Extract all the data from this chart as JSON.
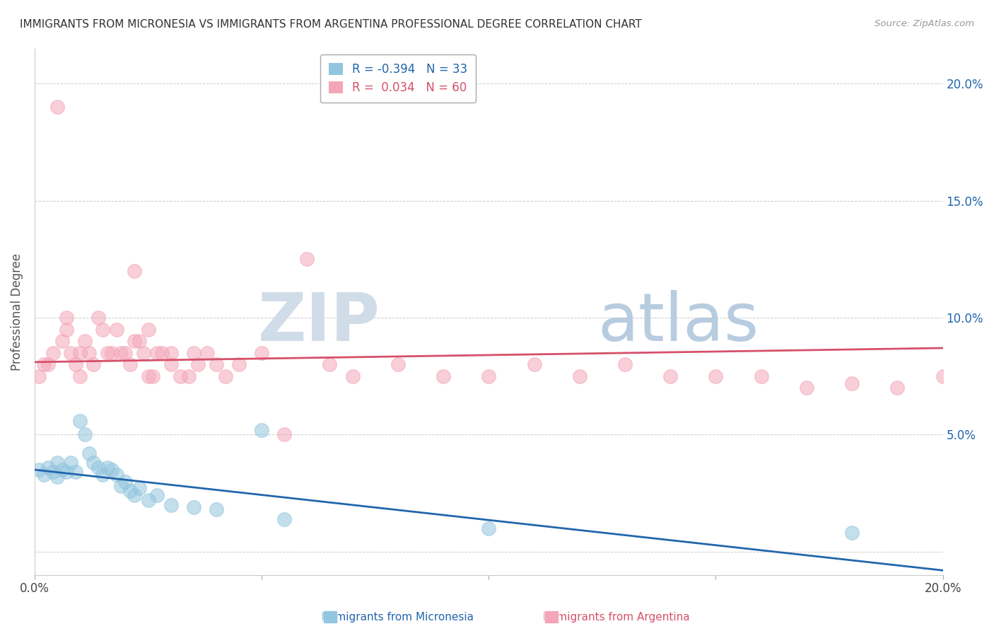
{
  "title": "IMMIGRANTS FROM MICRONESIA VS IMMIGRANTS FROM ARGENTINA PROFESSIONAL DEGREE CORRELATION CHART",
  "source": "Source: ZipAtlas.com",
  "ylabel": "Professional Degree",
  "xlim": [
    0.0,
    0.2
  ],
  "ylim": [
    -0.01,
    0.215
  ],
  "xticks": [
    0.0,
    0.05,
    0.1,
    0.15,
    0.2
  ],
  "yticks": [
    0.0,
    0.05,
    0.1,
    0.15,
    0.2
  ],
  "xticklabels": [
    "0.0%",
    "",
    "",
    "",
    "20.0%"
  ],
  "right_yticklabels": [
    "",
    "5.0%",
    "10.0%",
    "15.0%",
    "20.0%"
  ],
  "legend_r1": "R = -0.394",
  "legend_n1": "N = 33",
  "legend_r2": "R =  0.034",
  "legend_n2": "N = 60",
  "color_blue": "#92c5de",
  "color_pink": "#f4a6b8",
  "line_blue": "#2166ac",
  "line_pink": "#d6506a",
  "watermark_zip": "ZIP",
  "watermark_atlas": "atlas",
  "watermark_color_zip": "#d0dce8",
  "watermark_color_atlas": "#b8cce0",
  "blue_x": [
    0.001,
    0.002,
    0.003,
    0.004,
    0.005,
    0.005,
    0.006,
    0.007,
    0.008,
    0.009,
    0.01,
    0.011,
    0.012,
    0.013,
    0.014,
    0.015,
    0.016,
    0.017,
    0.018,
    0.019,
    0.02,
    0.021,
    0.022,
    0.023,
    0.025,
    0.027,
    0.03,
    0.035,
    0.04,
    0.05,
    0.055,
    0.1,
    0.18
  ],
  "blue_y": [
    0.035,
    0.033,
    0.036,
    0.034,
    0.032,
    0.038,
    0.035,
    0.034,
    0.038,
    0.034,
    0.056,
    0.05,
    0.042,
    0.038,
    0.036,
    0.033,
    0.036,
    0.035,
    0.033,
    0.028,
    0.03,
    0.026,
    0.024,
    0.027,
    0.022,
    0.024,
    0.02,
    0.019,
    0.018,
    0.052,
    0.014,
    0.01,
    0.008
  ],
  "pink_x": [
    0.001,
    0.002,
    0.003,
    0.004,
    0.005,
    0.006,
    0.007,
    0.007,
    0.008,
    0.009,
    0.01,
    0.011,
    0.012,
    0.013,
    0.014,
    0.015,
    0.016,
    0.017,
    0.018,
    0.019,
    0.02,
    0.021,
    0.022,
    0.022,
    0.023,
    0.024,
    0.025,
    0.026,
    0.027,
    0.028,
    0.03,
    0.032,
    0.034,
    0.035,
    0.036,
    0.038,
    0.04,
    0.042,
    0.045,
    0.05,
    0.055,
    0.06,
    0.065,
    0.07,
    0.08,
    0.09,
    0.1,
    0.11,
    0.12,
    0.13,
    0.14,
    0.15,
    0.16,
    0.17,
    0.18,
    0.19,
    0.2,
    0.025,
    0.03,
    0.01
  ],
  "pink_y": [
    0.075,
    0.08,
    0.08,
    0.085,
    0.19,
    0.09,
    0.095,
    0.1,
    0.085,
    0.08,
    0.075,
    0.09,
    0.085,
    0.08,
    0.1,
    0.095,
    0.085,
    0.085,
    0.095,
    0.085,
    0.085,
    0.08,
    0.09,
    0.12,
    0.09,
    0.085,
    0.095,
    0.075,
    0.085,
    0.085,
    0.085,
    0.075,
    0.075,
    0.085,
    0.08,
    0.085,
    0.08,
    0.075,
    0.08,
    0.085,
    0.05,
    0.125,
    0.08,
    0.075,
    0.08,
    0.075,
    0.075,
    0.08,
    0.075,
    0.08,
    0.075,
    0.075,
    0.075,
    0.07,
    0.072,
    0.07,
    0.075,
    0.075,
    0.08,
    0.085
  ],
  "blue_trend_x": [
    0.0,
    0.2
  ],
  "blue_trend_y": [
    0.035,
    -0.008
  ],
  "pink_trend_x": [
    0.0,
    0.2
  ],
  "pink_trend_y": [
    0.081,
    0.087
  ]
}
